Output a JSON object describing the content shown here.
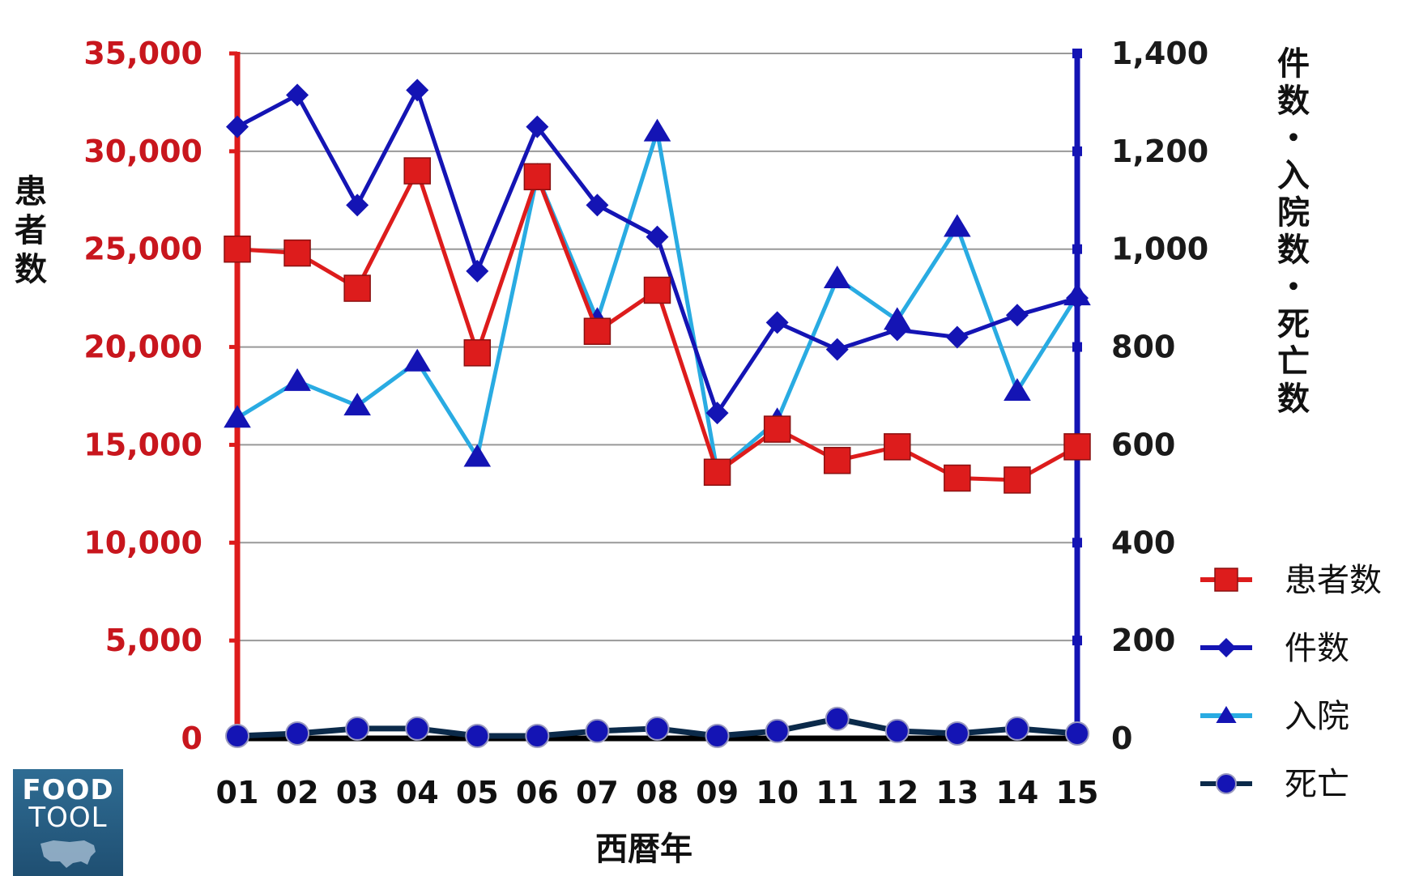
{
  "chart_data": {
    "type": "line",
    "xlabel": "西暦年",
    "ylabel_left": "患者数",
    "ylabel_right": "件数・入院数・死亡数",
    "categories": [
      "01",
      "02",
      "03",
      "04",
      "05",
      "06",
      "07",
      "08",
      "09",
      "10",
      "11",
      "12",
      "13",
      "14",
      "15"
    ],
    "y_left": {
      "min": 0,
      "max": 35000,
      "ticks": [
        "0",
        "5,000",
        "10,000",
        "15,000",
        "20,000",
        "25,000",
        "30,000",
        "35,000"
      ]
    },
    "y_right": {
      "min": 0,
      "max": 1400,
      "ticks": [
        "0",
        "200",
        "400",
        "600",
        "800",
        "1,000",
        "1,200",
        "1,400"
      ]
    },
    "grid": true,
    "legend_position": "right",
    "series": [
      {
        "name": "患者数",
        "axis": "left",
        "marker": "square",
        "color": "#dd1c1c",
        "values": [
          25000,
          24800,
          23000,
          29000,
          19700,
          28700,
          20800,
          22900,
          13600,
          15800,
          14200,
          14900,
          13300,
          13200,
          14900
        ]
      },
      {
        "name": "件数",
        "axis": "right",
        "marker": "diamond",
        "color": "#1414b4",
        "values": [
          1250,
          1315,
          1090,
          1325,
          955,
          1250,
          1090,
          1025,
          665,
          850,
          795,
          835,
          820,
          865,
          900
        ]
      },
      {
        "name": "入院",
        "axis": "right",
        "marker": "triangle",
        "color": "#29abe2",
        "values": [
          655,
          730,
          680,
          770,
          575,
          1150,
          855,
          1240,
          545,
          650,
          940,
          855,
          1045,
          710,
          905
        ]
      },
      {
        "name": "死亡",
        "axis": "right",
        "marker": "circle",
        "color": "#0b2a4a",
        "values": [
          5,
          10,
          20,
          20,
          5,
          5,
          15,
          20,
          5,
          15,
          40,
          15,
          10,
          20,
          10
        ]
      }
    ]
  },
  "logo": {
    "line1": "FOOD",
    "line2": "TOOL"
  },
  "colors": {
    "left_axis": "#dd1c1c",
    "right_axis": "#1414b4",
    "grid": "#999999",
    "baseline": "#000000"
  }
}
